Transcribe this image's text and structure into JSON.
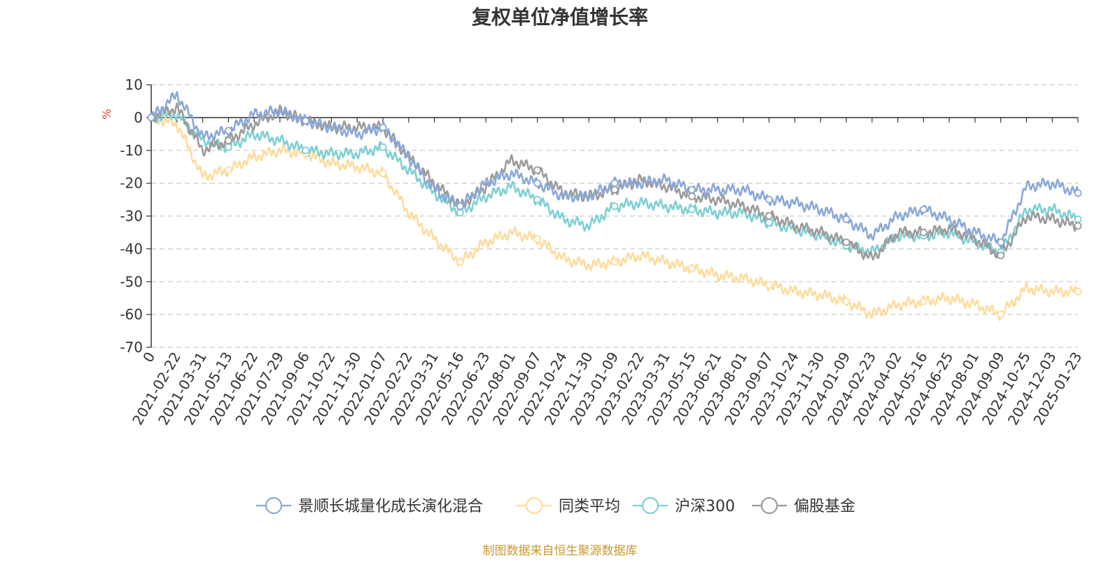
{
  "chart_data": {
    "type": "line",
    "title": "复权单位净值增长率",
    "ylabel": "%",
    "ylim": [
      -70,
      10
    ],
    "yticks": [
      10,
      0,
      -10,
      -20,
      -30,
      -40,
      -50,
      -60,
      -70
    ],
    "x_categories": [
      "0",
      "2021-02-22",
      "2021-03-31",
      "2021-05-13",
      "2021-06-22",
      "2021-07-29",
      "2021-09-06",
      "2021-10-22",
      "2021-11-30",
      "2022-01-07",
      "2022-02-22",
      "2022-03-31",
      "2022-05-16",
      "2022-06-23",
      "2022-08-01",
      "2022-09-07",
      "2022-10-24",
      "2022-11-30",
      "2023-01-09",
      "2023-02-22",
      "2023-03-31",
      "2023-05-15",
      "2023-06-21",
      "2023-08-01",
      "2023-09-07",
      "2023-10-24",
      "2023-11-30",
      "2024-01-09",
      "2024-02-23",
      "2024-04-02",
      "2024-05-16",
      "2024-06-25",
      "2024-08-01",
      "2024-09-09",
      "2024-10-25",
      "2024-12-03",
      "2025-01-23"
    ],
    "grid": true,
    "legend_position": "bottom",
    "series": [
      {
        "name": "景顺长城量化成长演化混合",
        "color": "#8aa8d8",
        "values": [
          0,
          7,
          -6,
          -4,
          1,
          2,
          -1,
          -3,
          -5,
          -3,
          -12,
          -22,
          -27,
          -20,
          -17,
          -20,
          -24,
          -24,
          -20,
          -20,
          -19,
          -22,
          -22,
          -22,
          -25,
          -26,
          -28,
          -31,
          -36,
          -30,
          -28,
          -31,
          -35,
          -38,
          -21,
          -20,
          -23
        ]
      },
      {
        "name": "同类平均",
        "color": "#fddc9e",
        "values": [
          0,
          -2,
          -18,
          -16,
          -12,
          -10,
          -11,
          -14,
          -15,
          -17,
          -29,
          -37,
          -44,
          -38,
          -35,
          -37,
          -43,
          -45,
          -44,
          -42,
          -44,
          -46,
          -48,
          -49,
          -51,
          -53,
          -54,
          -56,
          -60,
          -57,
          -56,
          -55,
          -57,
          -60,
          -52,
          -53,
          -53
        ]
      },
      {
        "name": "沪深300",
        "color": "#7fd0d3",
        "values": [
          0,
          1,
          -7,
          -9,
          -5,
          -7,
          -10,
          -11,
          -11,
          -9,
          -16,
          -23,
          -29,
          -24,
          -21,
          -25,
          -31,
          -33,
          -27,
          -26,
          -27,
          -28,
          -29,
          -29,
          -32,
          -34,
          -36,
          -39,
          -41,
          -36,
          -36,
          -35,
          -38,
          -41,
          -28,
          -28,
          -31
        ]
      },
      {
        "name": "偏股基金",
        "color": "#9b9b9b",
        "values": [
          0,
          3,
          -10,
          -7,
          -2,
          2,
          -1,
          -3,
          -3,
          -3,
          -12,
          -20,
          -27,
          -21,
          -13,
          -16,
          -23,
          -24,
          -22,
          -19,
          -21,
          -24,
          -25,
          -27,
          -30,
          -33,
          -35,
          -38,
          -43,
          -35,
          -35,
          -34,
          -37,
          -42,
          -30,
          -31,
          -33
        ]
      }
    ]
  },
  "source": "制图数据来自恒生聚源数据库"
}
